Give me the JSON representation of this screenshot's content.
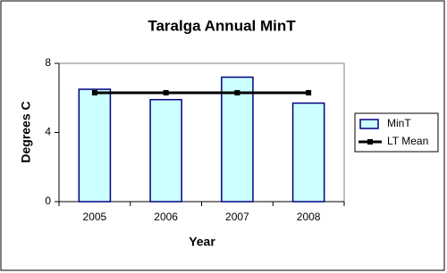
{
  "chart_data": {
    "type": "bar",
    "title": "Taralga Annual MinT",
    "x_label": "Year",
    "y_label": "Degrees C",
    "categories": [
      "2005",
      "2006",
      "2007",
      "2008"
    ],
    "series": [
      {
        "name": "MinT",
        "type": "bar",
        "color": "#ccffff",
        "values": [
          6.5,
          5.9,
          7.2,
          5.7
        ]
      },
      {
        "name": "LT Mean",
        "type": "line",
        "color": "#000000",
        "values": [
          6.3,
          6.3,
          6.3,
          6.3
        ]
      }
    ],
    "ylim": [
      0,
      8
    ],
    "yticks": [
      0,
      4,
      8
    ],
    "grid": false,
    "legend": "right"
  }
}
